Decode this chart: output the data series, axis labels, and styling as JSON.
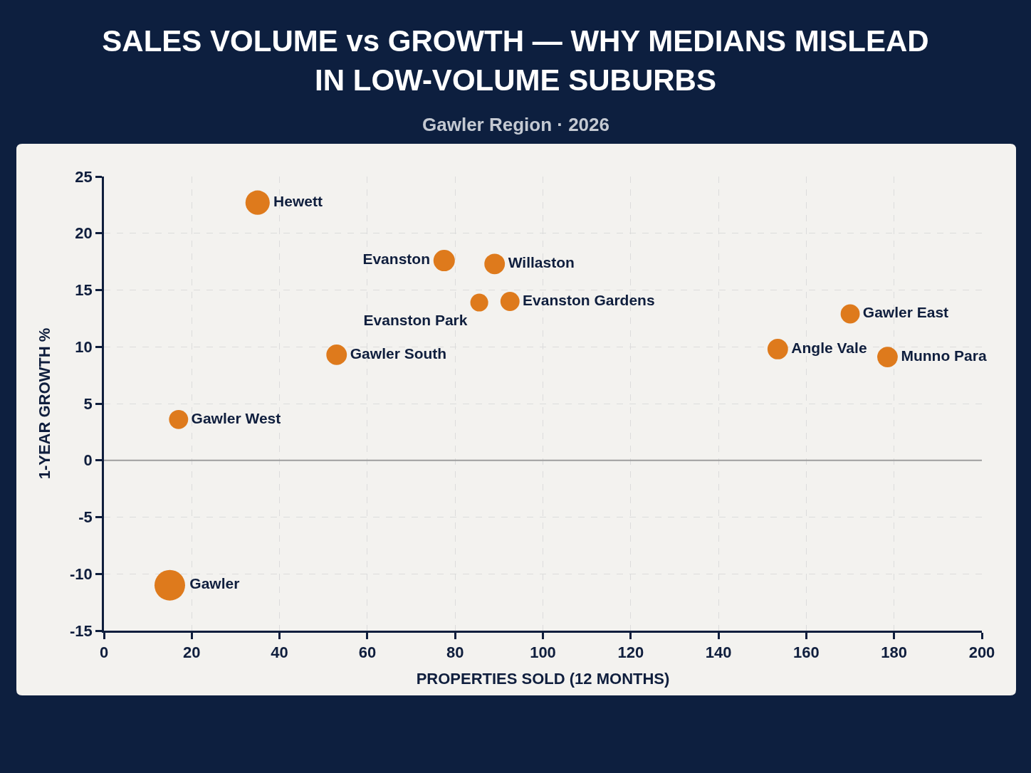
{
  "chart_data": {
    "type": "bubble",
    "title": "SALES VOLUME vs GROWTH — WHY MEDIANS MISLEAD IN LOW-VOLUME SUBURBS",
    "subtitle": "Gawler Region · 2026",
    "xlabel": "PROPERTIES SOLD (12 MONTHS)",
    "ylabel": "1-YEAR GROWTH %",
    "xlim": [
      0,
      200
    ],
    "xticks": [
      0,
      20,
      40,
      60,
      80,
      100,
      120,
      140,
      160,
      180,
      200
    ],
    "ylim": [
      -15,
      25
    ],
    "yticks": [
      -15,
      -10,
      -5,
      0,
      5,
      10,
      15,
      20,
      25
    ],
    "grid": true,
    "marker": "circle",
    "ref_lines": [
      {
        "axis": "y",
        "value": 0,
        "color": "#9e9e9e"
      }
    ],
    "series": [
      {
        "name": "Hewett",
        "color": "#de7a1c",
        "x": [
          35
        ],
        "values": [
          22.7
        ],
        "sizes": [
          0.63
        ]
      },
      {
        "name": "Evanston",
        "color": "#de7a1c",
        "x": [
          77.5
        ],
        "values": [
          17.6
        ],
        "sizes": [
          0.49
        ]
      },
      {
        "name": "Willaston",
        "color": "#de7a1c",
        "x": [
          89
        ],
        "values": [
          17.3
        ],
        "sizes": [
          0.45
        ]
      },
      {
        "name": "Evanston Park",
        "color": "#de7a1c",
        "x": [
          85.5
        ],
        "values": [
          13.9
        ],
        "sizes": [
          0.34
        ]
      },
      {
        "name": "Evanston Gardens",
        "color": "#de7a1c",
        "x": [
          92.5
        ],
        "values": [
          14.0
        ],
        "sizes": [
          0.39
        ]
      },
      {
        "name": "Gawler South",
        "color": "#de7a1c",
        "x": [
          53
        ],
        "values": [
          9.3
        ],
        "sizes": [
          0.45
        ]
      },
      {
        "name": "Gawler West",
        "color": "#de7a1c",
        "x": [
          17
        ],
        "values": [
          3.6
        ],
        "sizes": [
          0.39
        ]
      },
      {
        "name": "Gawler",
        "color": "#de7a1c",
        "x": [
          15
        ],
        "values": [
          -11.0
        ],
        "sizes": [
          1
        ]
      },
      {
        "name": "Angle Vale",
        "color": "#de7a1c",
        "x": [
          153.5
        ],
        "values": [
          9.8
        ],
        "sizes": [
          0.45
        ]
      },
      {
        "name": "Gawler East",
        "color": "#de7a1c",
        "x": [
          170
        ],
        "values": [
          12.9
        ],
        "sizes": [
          0.39
        ]
      },
      {
        "name": "Munno Para",
        "color": "#de7a1c",
        "x": [
          178.5
        ],
        "values": [
          9.1
        ],
        "sizes": [
          0.45
        ]
      }
    ]
  }
}
